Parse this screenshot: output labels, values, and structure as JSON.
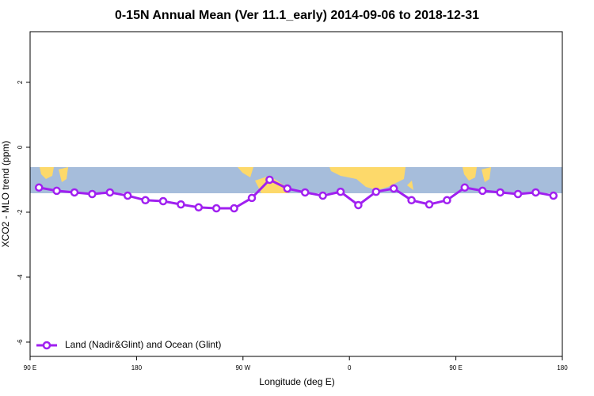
{
  "chart_data": {
    "type": "line",
    "title": "0-15N Annual Mean (Ver 11.1_early)   2014-09-06 to 2018-12-31",
    "xlabel": "Longitude (deg E)",
    "ylabel": "XCO2 - MLO trend (ppm)",
    "x": [
      97.5,
      112.5,
      127.5,
      142.5,
      157.5,
      172.5,
      187.5,
      202.5,
      217.5,
      232.5,
      247.5,
      262.5,
      277.5,
      292.5,
      307.5,
      322.5,
      337.5,
      352.5,
      367.5,
      382.5,
      397.5,
      412.5,
      427.5,
      442.5,
      457.5,
      472.5,
      487.5,
      502.5,
      517.5,
      532.5
    ],
    "series": [
      {
        "name": "Land (Nadir&Glint) and Ocean (Glint)",
        "color": "#a020f0",
        "values": [
          -1.24,
          -1.34,
          -1.39,
          -1.44,
          -1.39,
          -1.49,
          -1.63,
          -1.66,
          -1.76,
          -1.85,
          -1.88,
          -1.88,
          -1.56,
          -1.0,
          -1.27,
          -1.39,
          -1.49,
          -1.37,
          -1.78,
          -1.37,
          -1.27,
          -1.63,
          -1.76,
          -1.63,
          -1.24,
          -1.34,
          -1.39,
          -1.44,
          -1.39,
          -1.49
        ]
      }
    ],
    "xlim": [
      90,
      540
    ],
    "xticks": [
      {
        "value": 90,
        "label": "90 E"
      },
      {
        "value": 180,
        "label": "180"
      },
      {
        "value": 270,
        "label": "90 W"
      },
      {
        "value": 360,
        "label": "0"
      },
      {
        "value": 450,
        "label": "90 E"
      },
      {
        "value": 540,
        "label": "180"
      }
    ],
    "ylim": [
      -6.44,
      3.56
    ],
    "yticks": [
      -6,
      -4,
      -2,
      0,
      2
    ],
    "legend": "bottom-left"
  }
}
